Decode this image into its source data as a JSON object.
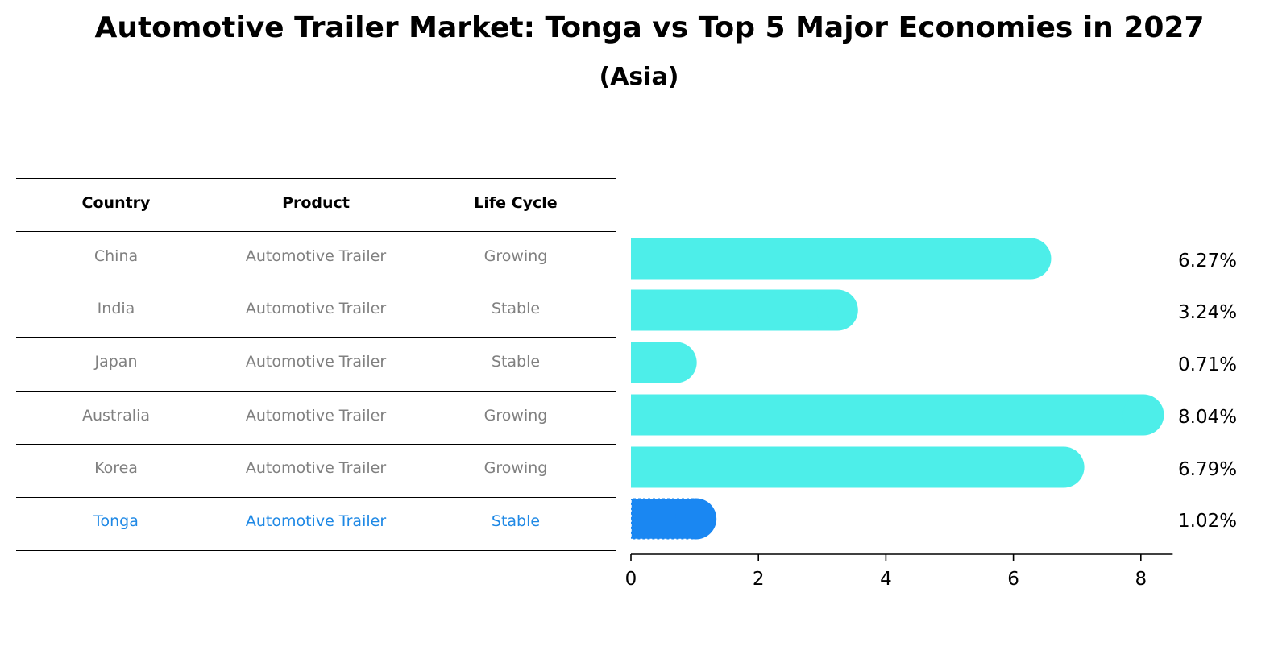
{
  "title": "Automotive Trailer Market: Tonga vs Top 5 Major Economies in 2027",
  "subtitle": "(Asia)",
  "table": {
    "headers": [
      "Country",
      "Product",
      "Life Cycle"
    ],
    "rows": [
      {
        "country": "China",
        "product": "Automotive Trailer",
        "life_cycle": "Growing",
        "highlight": false
      },
      {
        "country": "India",
        "product": "Automotive Trailer",
        "life_cycle": "Stable",
        "highlight": false
      },
      {
        "country": "Japan",
        "product": "Automotive Trailer",
        "life_cycle": "Stable",
        "highlight": false
      },
      {
        "country": "Australia",
        "product": "Automotive Trailer",
        "life_cycle": "Growing",
        "highlight": false
      },
      {
        "country": "Korea",
        "product": "Automotive Trailer",
        "life_cycle": "Growing",
        "highlight": false
      },
      {
        "country": "Tonga",
        "product": "Automotive Trailer",
        "life_cycle": "Stable",
        "highlight": true
      }
    ]
  },
  "chart_data": {
    "type": "bar",
    "orientation": "horizontal",
    "categories": [
      "China",
      "India",
      "Japan",
      "Australia",
      "Korea",
      "Tonga"
    ],
    "values": [
      6.27,
      3.24,
      0.71,
      8.04,
      6.79,
      1.02
    ],
    "value_labels": [
      "6.27%",
      "3.24%",
      "0.71%",
      "8.04%",
      "6.79%",
      "1.02%"
    ],
    "highlight_category": "Tonga",
    "xlim": [
      0,
      8.5
    ],
    "xticks": [
      0,
      2,
      4,
      6,
      8
    ],
    "xlabel": "",
    "ylabel": "",
    "grid": false,
    "colors": {
      "default": "#4deee9",
      "highlight": "#1a87f2"
    }
  }
}
